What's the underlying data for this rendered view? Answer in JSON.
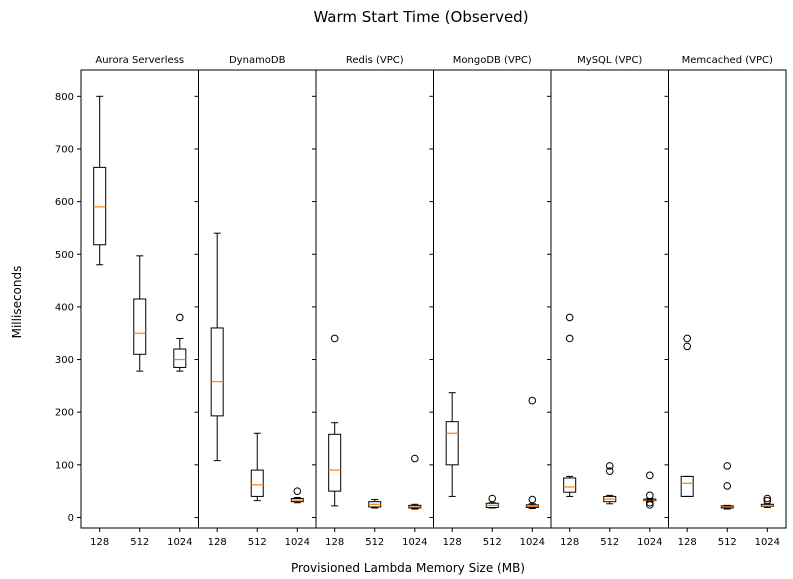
{
  "chart_data": {
    "type": "box",
    "title": "Warm Start Time (Observed)",
    "xlabel": "Provisioned Lambda Memory Size (MB)",
    "ylabel": "Milliseconds",
    "categories": [
      "128",
      "512",
      "1024"
    ],
    "ylim": [
      -20,
      850
    ],
    "yticks": [
      0,
      100,
      200,
      300,
      400,
      500,
      600,
      700,
      800
    ],
    "grid": false,
    "legend": "none",
    "colors": {
      "box": "#000000",
      "median": "#ff7f0e",
      "outlier": "#000000"
    },
    "panels": [
      {
        "name": "Aurora Serverless",
        "boxes": [
          {
            "category": "128",
            "whisker_low": 480,
            "q1": 518,
            "median": 590,
            "q3": 665,
            "whisker_high": 800,
            "outliers": []
          },
          {
            "category": "512",
            "whisker_low": 278,
            "q1": 310,
            "median": 350,
            "q3": 415,
            "whisker_high": 497,
            "outliers": []
          },
          {
            "category": "1024",
            "whisker_low": 278,
            "q1": 285,
            "median": 300,
            "q3": 320,
            "whisker_high": 340,
            "outliers": [
              380
            ]
          }
        ]
      },
      {
        "name": "DynamoDB",
        "boxes": [
          {
            "category": "128",
            "whisker_low": 108,
            "q1": 193,
            "median": 258,
            "q3": 360,
            "whisker_high": 540,
            "outliers": []
          },
          {
            "category": "512",
            "whisker_low": 32,
            "q1": 40,
            "median": 62,
            "q3": 90,
            "whisker_high": 160,
            "outliers": []
          },
          {
            "category": "1024",
            "whisker_low": 28,
            "q1": 30,
            "median": 33,
            "q3": 36,
            "whisker_high": 38,
            "outliers": [
              50
            ]
          }
        ]
      },
      {
        "name": "Redis (VPC)",
        "boxes": [
          {
            "category": "128",
            "whisker_low": 22,
            "q1": 50,
            "median": 90,
            "q3": 158,
            "whisker_high": 180,
            "outliers": [
              340
            ]
          },
          {
            "category": "512",
            "whisker_low": 18,
            "q1": 20,
            "median": 25,
            "q3": 30,
            "whisker_high": 34,
            "outliers": []
          },
          {
            "category": "1024",
            "whisker_low": 16,
            "q1": 18,
            "median": 20,
            "q3": 23,
            "whisker_high": 25,
            "outliers": [
              112
            ]
          }
        ]
      },
      {
        "name": "MongoDB (VPC)",
        "boxes": [
          {
            "category": "128",
            "whisker_low": 40,
            "q1": 100,
            "median": 160,
            "q3": 182,
            "whisker_high": 237,
            "outliers": []
          },
          {
            "category": "512",
            "whisker_low": 18,
            "q1": 19,
            "median": 23,
            "q3": 27,
            "whisker_high": 28,
            "outliers": [
              36
            ]
          },
          {
            "category": "1024",
            "whisker_low": 17,
            "q1": 19,
            "median": 21,
            "q3": 24,
            "whisker_high": 26,
            "outliers": [
              34,
              222
            ]
          }
        ]
      },
      {
        "name": "MySQL (VPC)",
        "boxes": [
          {
            "category": "128",
            "whisker_low": 40,
            "q1": 48,
            "median": 58,
            "q3": 75,
            "whisker_high": 78,
            "outliers": [
              340,
              380
            ]
          },
          {
            "category": "512",
            "whisker_low": 26,
            "q1": 30,
            "median": 35,
            "q3": 40,
            "whisker_high": 42,
            "outliers": [
              88,
              98
            ]
          },
          {
            "category": "1024",
            "whisker_low": 30,
            "q1": 32,
            "median": 33,
            "q3": 35,
            "whisker_high": 36,
            "outliers": [
              24,
              28,
              42,
              80
            ]
          }
        ]
      },
      {
        "name": "Memcached (VPC)",
        "boxes": [
          {
            "category": "128",
            "whisker_low": 40,
            "q1": 40,
            "median": 65,
            "q3": 78,
            "whisker_high": 78,
            "outliers": [
              325,
              340
            ]
          },
          {
            "category": "512",
            "whisker_low": 16,
            "q1": 18,
            "median": 20,
            "q3": 22,
            "whisker_high": 23,
            "outliers": [
              60,
              98
            ]
          },
          {
            "category": "1024",
            "whisker_low": 19,
            "q1": 21,
            "median": 22,
            "q3": 25,
            "whisker_high": 26,
            "outliers": [
              32,
              36
            ]
          }
        ]
      }
    ]
  }
}
